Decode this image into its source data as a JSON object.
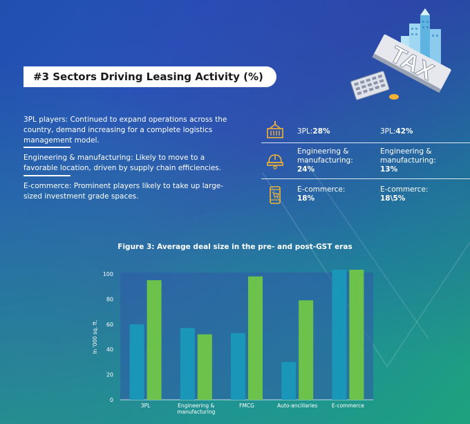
{
  "header": {
    "title": "#3 Sectors Driving Leasing Activity (%)"
  },
  "descriptions": [
    {
      "text": "3PL players: Continued to expand operations across the country, demand increasing for a complete logistics management model."
    },
    {
      "text": "Engineering & manufacturing: Likely to move to a favorable location, driven by supply chain efficiencies."
    },
    {
      "text": "E-commerce: Prominent players likely to take up large-sized investment grade spaces."
    }
  ],
  "stats": [
    {
      "icon": "shipping-container-icon",
      "pre_label": "3PL:",
      "pre_value": "28%",
      "post_label": "3PL:",
      "post_value": "42%"
    },
    {
      "icon": "hard-hat-icon",
      "pre_label": "Engineering & manufacturing:",
      "pre_value": "24%",
      "post_label": "Engineering & manufacturing:",
      "post_value": "13%"
    },
    {
      "icon": "mobile-cart-icon",
      "pre_label": "E-commerce:",
      "pre_value": "18%",
      "post_label": "E-commerce:",
      "post_value": "18\\5%"
    }
  ],
  "decoration": {
    "tax_sign_text": "TAX",
    "illustration": "city-tax-calculator-illustration"
  },
  "colors": {
    "pre_gst": "#1a96b8",
    "post_gst": "#6cc24a",
    "plot_bg": "#2f5aa8"
  },
  "chart_data": {
    "type": "bar",
    "title": "Figure 3: Average deal size in the pre- and post-GST eras",
    "ylabel": "In '000 sq. ft.",
    "ylim": [
      0,
      100
    ],
    "yticks": [
      0,
      20,
      40,
      60,
      80,
      100
    ],
    "categories": [
      "3PL",
      "Engineering & manufacturing",
      "FMCG",
      "Auto-ancillaries",
      "E-commerce"
    ],
    "series": [
      {
        "values": [
          60,
          57,
          53,
          30,
          106
        ]
      },
      {
        "values": [
          95,
          52,
          98,
          79,
          106
        ]
      }
    ],
    "grid": false,
    "legend": "bottom"
  }
}
